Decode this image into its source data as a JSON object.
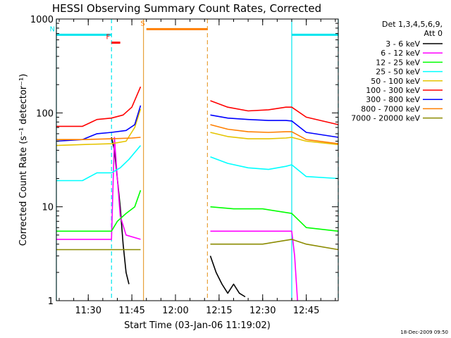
{
  "chart_data": {
    "type": "line",
    "title": "HESSI Observing Summary Count Rates, Corrected",
    "xlabel": "Start Time (03-Jan-06 11:19:02)",
    "ylabel": "Corrected Count Rate (s⁻¹ detector⁻¹)",
    "yscale": "log",
    "ylim": [
      1,
      1000
    ],
    "xlim": [
      "11:19:02",
      "12:56:00"
    ],
    "x_ticks": [
      "11:30",
      "11:45",
      "12:00",
      "12:15",
      "12:30",
      "12:45"
    ],
    "y_ticks": [
      "1",
      "10",
      "100",
      "1000"
    ],
    "grid": false,
    "legend_position": "right",
    "legend_header": [
      "Det 1,3,4,5,6,9,",
      "Att 0"
    ],
    "timestamp": "18-Dec-2009 09:50",
    "flags": [
      {
        "label": "N",
        "color": "#00e5ee",
        "start": "11:19:02",
        "end": "11:38:00",
        "level": 680
      },
      {
        "label": "F",
        "color": "#ff0000",
        "start": "11:38:00",
        "end": "11:41:00",
        "level": 560
      },
      {
        "label": "S",
        "color": "#ff7f00",
        "start": "11:50:00",
        "end": "12:11:00",
        "level": 780
      },
      {
        "label": "",
        "color": "#00e5ee",
        "start": "12:40:00",
        "end": "12:56:00",
        "level": 680
      }
    ],
    "vertical_markers": [
      {
        "time": "11:19:02",
        "color": "#00e5ee",
        "style": "solid"
      },
      {
        "time": "11:38:00",
        "color": "#00e5ee",
        "style": "dashed"
      },
      {
        "time": "11:49:00",
        "color": "#e8a23a",
        "style": "solid"
      },
      {
        "time": "12:11:00",
        "color": "#e8a23a",
        "style": "dashed"
      },
      {
        "time": "12:40:00",
        "color": "#00e5ee",
        "style": "solid"
      },
      {
        "time": "12:56:00",
        "color": "#00e5ee",
        "style": "dashed"
      }
    ],
    "series": [
      {
        "name": "3 - 6 keV",
        "color": "#000000",
        "segments": [
          {
            "x": [
              "11:38:00",
              "11:39:00",
              "11:40:00",
              "11:41:00",
              "11:42:00",
              "11:43:00",
              "11:44:00"
            ],
            "y": [
              55,
              40,
              20,
              10,
              4,
              2,
              1.5
            ]
          },
          {
            "x": [
              "12:12:00",
              "12:14:00",
              "12:16:00",
              "12:18:00",
              "12:20:00",
              "12:22:00",
              "12:24:00"
            ],
            "y": [
              3,
              2,
              1.5,
              1.2,
              1.5,
              1.2,
              1.1
            ]
          }
        ]
      },
      {
        "name": "6 - 12 keV",
        "color": "#ff00ff",
        "segments": [
          {
            "x": [
              "11:19:02",
              "11:28:00",
              "11:38:00",
              "11:39:00",
              "11:40:00",
              "11:41:00",
              "11:43:00",
              "11:48:00"
            ],
            "y": [
              4.5,
              4.5,
              4.5,
              55,
              20,
              8,
              5,
              4.5
            ]
          },
          {
            "x": [
              "12:12:00",
              "12:20:00",
              "12:30:00",
              "12:40:00",
              "12:41:00",
              "12:42:00"
            ],
            "y": [
              5.5,
              5.5,
              5.5,
              5.5,
              3,
              1
            ]
          }
        ]
      },
      {
        "name": "12 - 25 keV",
        "color": "#00ff00",
        "segments": [
          {
            "x": [
              "11:19:02",
              "11:28:00",
              "11:38:00",
              "11:40:00",
              "11:43:00",
              "11:46:00",
              "11:48:00"
            ],
            "y": [
              5.5,
              5.5,
              5.5,
              7,
              8.5,
              10,
              15
            ]
          },
          {
            "x": [
              "12:12:00",
              "12:20:00",
              "12:30:00",
              "12:40:00",
              "12:45:00",
              "12:56:00"
            ],
            "y": [
              10,
              9.5,
              9.5,
              8.5,
              6,
              5.5
            ]
          }
        ]
      },
      {
        "name": "25 - 50 keV",
        "color": "#00ffff",
        "segments": [
          {
            "x": [
              "11:19:02",
              "11:28:00",
              "11:33:00",
              "11:38:00",
              "11:41:00",
              "11:44:00",
              "11:48:00"
            ],
            "y": [
              19,
              19,
              23,
              23,
              26,
              32,
              45
            ]
          },
          {
            "x": [
              "12:12:00",
              "12:18:00",
              "12:25:00",
              "12:32:00",
              "12:38:00",
              "12:40:00",
              "12:45:00",
              "12:56:00"
            ],
            "y": [
              34,
              29,
              26,
              25,
              27,
              28,
              21,
              20
            ]
          }
        ]
      },
      {
        "name": "50 - 100 keV",
        "color": "#e5c400",
        "segments": [
          {
            "x": [
              "11:19:02",
              "11:28:00",
              "11:38:00",
              "11:43:00",
              "11:46:00",
              "11:48:00"
            ],
            "y": [
              45,
              46,
              47,
              50,
              70,
              110
            ]
          },
          {
            "x": [
              "12:12:00",
              "12:18:00",
              "12:25:00",
              "12:32:00",
              "12:38:00",
              "12:40:00",
              "12:45:00",
              "12:56:00"
            ],
            "y": [
              62,
              56,
              53,
              53,
              54,
              55,
              50,
              46
            ]
          }
        ]
      },
      {
        "name": "100 - 300 keV",
        "color": "#ff0000",
        "segments": [
          {
            "x": [
              "11:19:02",
              "11:28:00",
              "11:33:00",
              "11:38:00",
              "11:42:00",
              "11:45:00",
              "11:48:00"
            ],
            "y": [
              72,
              72,
              85,
              88,
              95,
              115,
              190
            ]
          },
          {
            "x": [
              "12:12:00",
              "12:18:00",
              "12:25:00",
              "12:32:00",
              "12:38:00",
              "12:40:00",
              "12:45:00",
              "12:56:00"
            ],
            "y": [
              135,
              115,
              105,
              108,
              115,
              115,
              90,
              75
            ]
          }
        ]
      },
      {
        "name": "300 - 800 keV",
        "color": "#0000ff",
        "segments": [
          {
            "x": [
              "11:19:02",
              "11:28:00",
              "11:33:00",
              "11:38:00",
              "11:43:00",
              "11:46:00",
              "11:48:00"
            ],
            "y": [
              50,
              52,
              60,
              62,
              65,
              75,
              120
            ]
          },
          {
            "x": [
              "12:12:00",
              "12:18:00",
              "12:25:00",
              "12:32:00",
              "12:38:00",
              "12:40:00",
              "12:45:00",
              "12:56:00"
            ],
            "y": [
              95,
              88,
              85,
              83,
              83,
              82,
              62,
              55
            ]
          }
        ]
      },
      {
        "name": "800 - 7000 keV",
        "color": "#ff7f00",
        "segments": [
          {
            "x": [
              "11:19:02",
              "11:28:00",
              "11:38:00",
              "11:45:00",
              "11:48:00"
            ],
            "y": [
              52,
              52,
              53,
              54,
              55
            ]
          },
          {
            "x": [
              "12:12:00",
              "12:18:00",
              "12:25:00",
              "12:32:00",
              "12:38:00",
              "12:40:00",
              "12:45:00",
              "12:56:00"
            ],
            "y": [
              75,
              67,
              63,
              62,
              63,
              63,
              52,
              47
            ]
          }
        ]
      },
      {
        "name": "7000 - 20000 keV",
        "color": "#8b8b00",
        "segments": [
          {
            "x": [
              "11:19:02",
              "11:28:00",
              "11:38:00",
              "11:45:00",
              "11:48:00"
            ],
            "y": [
              3.5,
              3.5,
              3.5,
              3.5,
              3.5
            ]
          },
          {
            "x": [
              "12:12:00",
              "12:20:00",
              "12:30:00",
              "12:40:00",
              "12:45:00",
              "12:56:00"
            ],
            "y": [
              4,
              4,
              4,
              4.5,
              4,
              3.5
            ]
          }
        ]
      }
    ]
  }
}
